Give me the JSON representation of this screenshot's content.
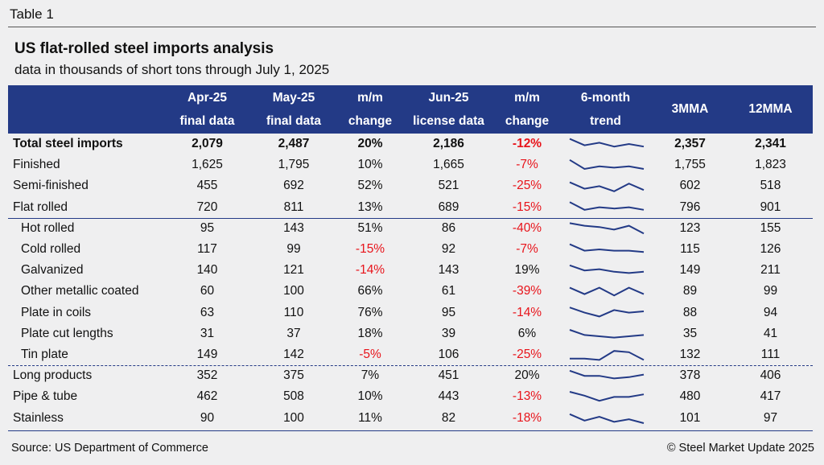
{
  "header": {
    "label": "Table 1",
    "title": "US flat-rolled steel imports analysis",
    "subtitle": "data in thousands of short tons through July 1, 2025"
  },
  "table": {
    "columns": [
      [
        "Apr-25",
        "final data"
      ],
      [
        "May-25",
        "final data"
      ],
      [
        "m/m",
        "change"
      ],
      [
        "Jun-25",
        "license data"
      ],
      [
        "m/m",
        "change"
      ],
      [
        "6-month",
        "trend"
      ],
      [
        "3MMA"
      ],
      [
        "12MMA"
      ]
    ],
    "rows": [
      {
        "label": "Total steel imports",
        "cells": [
          "2,079",
          "2,487",
          "20%",
          "2,186",
          "-12%",
          "2,357",
          "2,341"
        ],
        "trend": [
          9,
          4,
          6,
          3,
          5,
          3
        ]
      },
      {
        "label": "Finished",
        "cells": [
          "1,625",
          "1,795",
          "10%",
          "1,665",
          "-7%",
          "1,755",
          "1,823"
        ],
        "trend": [
          9,
          2,
          4,
          3,
          4,
          2
        ]
      },
      {
        "label": "Semi-finished",
        "cells": [
          "455",
          "692",
          "52%",
          "521",
          "-25%",
          "602",
          "518"
        ],
        "trend": [
          8,
          3,
          5,
          1,
          7,
          2
        ]
      },
      {
        "label": "Flat rolled",
        "cells": [
          "720",
          "811",
          "13%",
          "689",
          "-15%",
          "796",
          "901"
        ],
        "trend": [
          9,
          3,
          5,
          4,
          5,
          3
        ]
      },
      {
        "label": "Hot rolled",
        "cells": [
          "95",
          "143",
          "51%",
          "86",
          "-40%",
          "123",
          "155"
        ],
        "trend": [
          9,
          7,
          6,
          4,
          7,
          1
        ]
      },
      {
        "label": "Cold rolled",
        "cells": [
          "117",
          "99",
          "-15%",
          "92",
          "-7%",
          "115",
          "126"
        ],
        "trend": [
          9,
          4,
          5,
          4,
          4,
          3
        ]
      },
      {
        "label": "Galvanized",
        "cells": [
          "140",
          "121",
          "-14%",
          "143",
          "19%",
          "149",
          "211"
        ],
        "trend": [
          9,
          5,
          6,
          4,
          3,
          4
        ]
      },
      {
        "label": "Other metallic coated",
        "cells": [
          "60",
          "100",
          "66%",
          "61",
          "-39%",
          "89",
          "99"
        ],
        "trend": [
          8,
          3,
          8,
          2,
          8,
          3
        ]
      },
      {
        "label": "Plate in coils",
        "cells": [
          "63",
          "110",
          "76%",
          "95",
          "-14%",
          "88",
          "94"
        ],
        "trend": [
          9,
          5,
          2,
          7,
          5,
          6
        ]
      },
      {
        "label": "Plate cut lengths",
        "cells": [
          "31",
          "37",
          "18%",
          "39",
          "6%",
          "35",
          "41"
        ],
        "trend": [
          8,
          4,
          3,
          2,
          3,
          4
        ]
      },
      {
        "label": "Tin plate",
        "cells": [
          "149",
          "142",
          "-5%",
          "106",
          "-25%",
          "132",
          "111"
        ],
        "trend": [
          2,
          2,
          1,
          8,
          7,
          1
        ]
      },
      {
        "label": "Long products",
        "cells": [
          "352",
          "375",
          "7%",
          "451",
          "20%",
          "378",
          "406"
        ],
        "trend": [
          9,
          5,
          5,
          3,
          4,
          6
        ]
      },
      {
        "label": "Pipe & tube",
        "cells": [
          "462",
          "508",
          "10%",
          "443",
          "-13%",
          "480",
          "417"
        ],
        "trend": [
          9,
          6,
          2,
          5,
          5,
          7
        ]
      },
      {
        "label": "Stainless",
        "cells": [
          "90",
          "100",
          "11%",
          "82",
          "-18%",
          "101",
          "97"
        ],
        "trend": [
          8,
          3,
          6,
          2,
          4,
          1
        ]
      }
    ]
  },
  "footer": {
    "source": "Source: US Department of Commerce",
    "copyright": "© Steel Market Update 2025"
  }
}
